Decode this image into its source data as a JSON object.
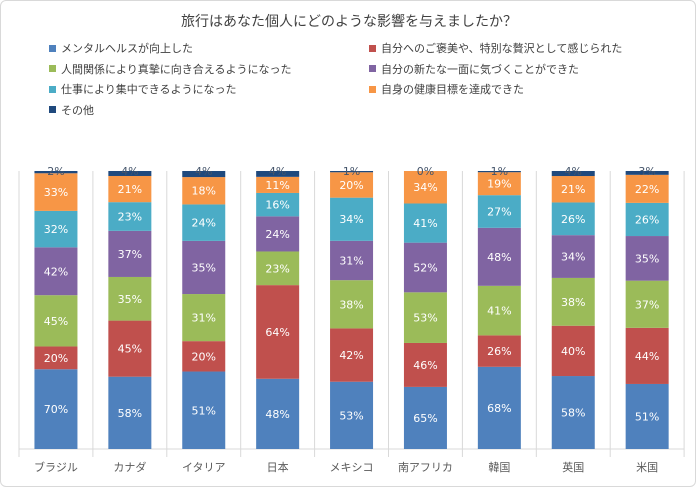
{
  "chart_data": {
    "type": "bar",
    "stacked": "100%",
    "title": "旅行はあなた個人にどのような影響を与えましたか？",
    "legend_placement": "top",
    "grid": false,
    "categories": [
      "ブラジル",
      "カナダ",
      "イタリア",
      "日本",
      "メキシコ",
      "南アフリカ",
      "韓国",
      "英国",
      "米国"
    ],
    "series": [
      {
        "name": "メンタルヘルスが向上した",
        "color": "#4F81BD",
        "values": [
          70,
          58,
          51,
          48,
          53,
          65,
          68,
          58,
          51
        ]
      },
      {
        "name": "自分へのご褒美や、特別な贅沢として感じられた",
        "color": "#C0504D",
        "values": [
          20,
          45,
          20,
          64,
          42,
          46,
          26,
          40,
          44
        ]
      },
      {
        "name": "人間関係により真摯に向き合えるようになった",
        "color": "#9BBB59",
        "values": [
          45,
          35,
          31,
          23,
          38,
          53,
          41,
          38,
          37
        ]
      },
      {
        "name": "自分の新たな一面に気づくことができた",
        "color": "#8064A2",
        "values": [
          42,
          37,
          35,
          24,
          31,
          52,
          48,
          34,
          35
        ]
      },
      {
        "name": "仕事により集中できるようになった",
        "color": "#4BACC6",
        "values": [
          32,
          23,
          24,
          16,
          34,
          41,
          27,
          26,
          26
        ]
      },
      {
        "name": "自身の健康目標を達成できた",
        "color": "#F79646",
        "values": [
          33,
          21,
          18,
          11,
          20,
          34,
          19,
          21,
          22
        ]
      },
      {
        "name": "その他",
        "color": "#1F497D",
        "values": [
          2,
          4,
          4,
          4,
          1,
          0,
          1,
          4,
          3
        ]
      }
    ]
  }
}
